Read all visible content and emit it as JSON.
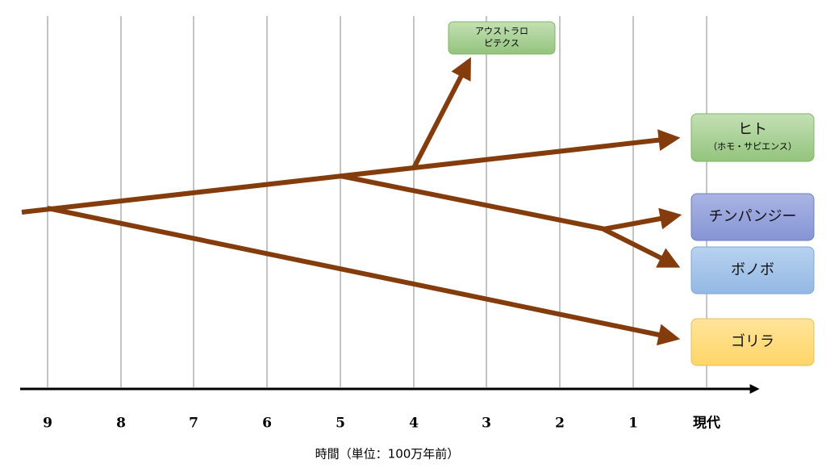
{
  "axis": {
    "ticks": [
      "9",
      "8",
      "7",
      "6",
      "5",
      "4",
      "3",
      "2",
      "1",
      "現代"
    ],
    "title": "時間（単位：100万年前）"
  },
  "nodes": [
    {
      "label": [
        "アウストラロ",
        "ピテクス"
      ]
    },
    {
      "label": [
        "ヒト",
        "（ホモ・サピエンス）"
      ]
    },
    {
      "label": [
        "チンパンジー"
      ]
    },
    {
      "label": [
        "ボノボ"
      ]
    },
    {
      "label": [
        "ゴリラ"
      ]
    }
  ]
}
